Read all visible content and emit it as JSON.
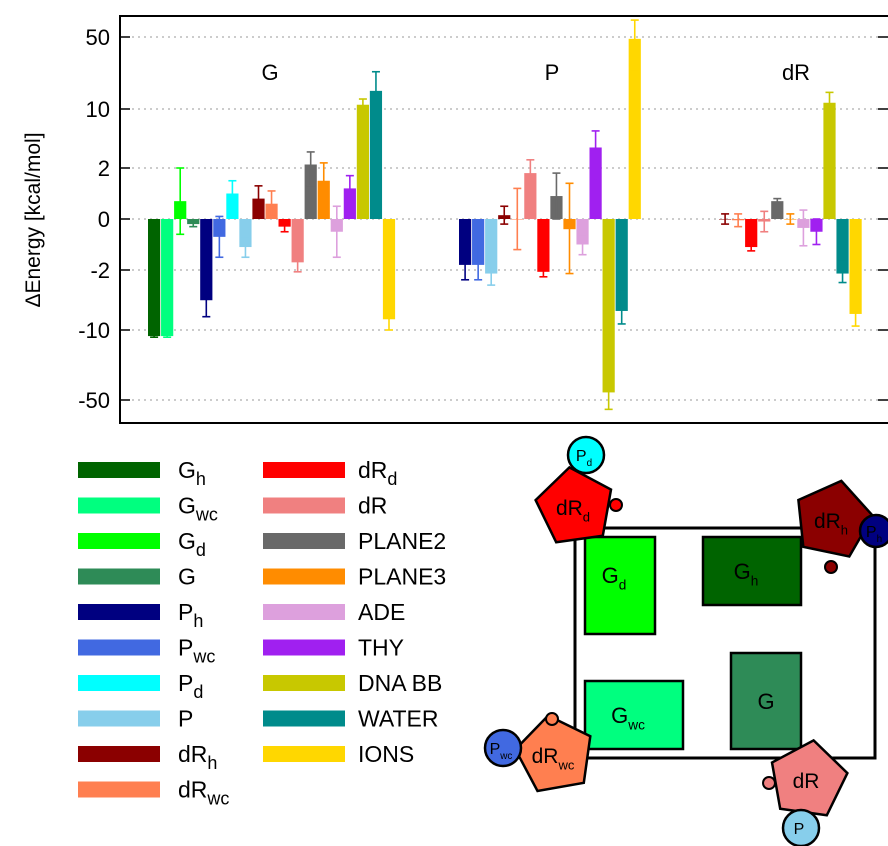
{
  "chart_data": {
    "type": "bar",
    "ylabel": "ΔEnergy [kcal/mol]",
    "yscale": "symlog",
    "yticks": [
      "50",
      "10",
      "2",
      "0",
      "-2",
      "-10",
      "-50"
    ],
    "ylim": [
      -80,
      80
    ],
    "grid": "horizontal dotted",
    "groups": [
      {
        "label": "G",
        "bars": [
          {
            "series": "Gh",
            "value": -11.5,
            "err": 0.3
          },
          {
            "series": "Gwc",
            "value": -11.5,
            "err": 0.3
          },
          {
            "series": "Gd",
            "value": 0.7,
            "err": 1.3
          },
          {
            "series": "G",
            "value": -0.2,
            "err": 0.1
          },
          {
            "series": "Ph",
            "value": -4.5,
            "err": 2.5
          },
          {
            "series": "Pwc",
            "value": -0.7,
            "err": 0.8
          },
          {
            "series": "Pd",
            "value": 1.0,
            "err": 0.5
          },
          {
            "series": "P",
            "value": -1.1,
            "err": 0.4
          },
          {
            "series": "dRh",
            "value": 0.8,
            "err": 0.5
          },
          {
            "series": "dRwc",
            "value": 0.6,
            "err": 0.5
          },
          {
            "series": "dRd",
            "value": -0.3,
            "err": 0.2
          },
          {
            "series": "dR",
            "value": -1.7,
            "err": 0.4
          },
          {
            "series": "PLANE2",
            "value": 2.2,
            "err": 0.9
          },
          {
            "series": "PLANE3",
            "value": 1.5,
            "err": 0.8
          },
          {
            "series": "ADE",
            "value": -0.5,
            "err": 1.0
          },
          {
            "series": "THY",
            "value": 1.2,
            "err": 0.5
          },
          {
            "series": "DNA BB",
            "value": 11.0,
            "err": 1.5
          },
          {
            "series": "WATER",
            "value": 15.0,
            "err": 8.0
          },
          {
            "series": "IONS",
            "value": -7.5,
            "err": 2.5
          }
        ]
      },
      {
        "label": "P",
        "bars": [
          {
            "series": "Ph",
            "value": -1.8,
            "err": 0.8
          },
          {
            "series": "Pwc",
            "value": -1.8,
            "err": 0.8
          },
          {
            "series": "P",
            "value": -2.2,
            "err": 0.8
          },
          {
            "series": "dRh",
            "value": 0.15,
            "err": 0.35
          },
          {
            "series": "dRwc",
            "value": 0.0,
            "err": 1.2
          },
          {
            "series": "dR",
            "value": 1.8,
            "err": 0.7
          },
          {
            "series": "dRd",
            "value": -2.1,
            "err": 0.3
          },
          {
            "series": "PLANE2",
            "value": 0.9,
            "err": 0.9
          },
          {
            "series": "PLANE3",
            "value": -0.4,
            "err": 1.8
          },
          {
            "series": "ADE",
            "value": -1.0,
            "err": 0.4
          },
          {
            "series": "THY",
            "value": 3.5,
            "err": 2.0
          },
          {
            "series": "DNA BB",
            "value": -42.0,
            "err": 20.0
          },
          {
            "series": "WATER",
            "value": -6.0,
            "err": 2.5
          },
          {
            "series": "IONS",
            "value": 48.0,
            "err": 25.0
          }
        ]
      },
      {
        "label": "dR",
        "bars": [
          {
            "series": "dRh",
            "value": 0.0,
            "err": 0.2
          },
          {
            "series": "dRwc",
            "value": -0.05,
            "err": 0.25
          },
          {
            "series": "dRd",
            "value": -1.1,
            "err": 0.15
          },
          {
            "series": "dR",
            "value": -0.1,
            "err": 0.4
          },
          {
            "series": "PLANE2",
            "value": 0.7,
            "err": 0.1
          },
          {
            "series": "PLANE3",
            "value": 0.0,
            "err": 0.2
          },
          {
            "series": "ADE",
            "value": -0.35,
            "err": 0.7
          },
          {
            "series": "THY",
            "value": -0.5,
            "err": 0.5
          },
          {
            "series": "DNA BB",
            "value": 11.5,
            "err": 3.0
          },
          {
            "series": "WATER",
            "value": -2.2,
            "err": 0.6
          },
          {
            "series": "IONS",
            "value": -6.5,
            "err": 2.5
          }
        ]
      }
    ],
    "legend": [
      {
        "id": "Gh",
        "base": "G",
        "sub": "h",
        "color": "#006400"
      },
      {
        "id": "Gwc",
        "base": "G",
        "sub": "wc",
        "color": "#00ff7f"
      },
      {
        "id": "Gd",
        "base": "G",
        "sub": "d",
        "color": "#00ff00"
      },
      {
        "id": "G",
        "base": "G",
        "sub": "",
        "color": "#2e8b57"
      },
      {
        "id": "Ph",
        "base": "P",
        "sub": "h",
        "color": "#000080"
      },
      {
        "id": "Pwc",
        "base": "P",
        "sub": "wc",
        "color": "#4169e1"
      },
      {
        "id": "Pd",
        "base": "P",
        "sub": "d",
        "color": "#00ffff"
      },
      {
        "id": "P",
        "base": "P",
        "sub": "",
        "color": "#87ceeb"
      },
      {
        "id": "dRh",
        "base": "dR",
        "sub": "h",
        "color": "#8b0000"
      },
      {
        "id": "dRwc",
        "base": "dR",
        "sub": "wc",
        "color": "#ff7f50"
      },
      {
        "id": "dRd",
        "base": "dR",
        "sub": "d",
        "color": "#ff0000"
      },
      {
        "id": "dR",
        "base": "dR",
        "sub": "",
        "color": "#f08080"
      },
      {
        "id": "PLANE2",
        "base": "PLANE2",
        "sub": "",
        "color": "#696969"
      },
      {
        "id": "PLANE3",
        "base": "PLANE3",
        "sub": "",
        "color": "#ff8c00"
      },
      {
        "id": "ADE",
        "base": "ADE",
        "sub": "",
        "color": "#dda0dd"
      },
      {
        "id": "THY",
        "base": "THY",
        "sub": "",
        "color": "#a020f0"
      },
      {
        "id": "DNA BB",
        "base": "DNA BB",
        "sub": "",
        "color": "#c8c800"
      },
      {
        "id": "WATER",
        "base": "WATER",
        "sub": "",
        "color": "#008b8b"
      },
      {
        "id": "IONS",
        "base": "IONS",
        "sub": "",
        "color": "#ffd700"
      }
    ]
  },
  "schematic": {
    "boxes": [
      {
        "id": "Gd",
        "base": "G",
        "sub": "d",
        "color": "#00ff00"
      },
      {
        "id": "Gh",
        "base": "G",
        "sub": "h",
        "color": "#006400"
      },
      {
        "id": "Gwc",
        "base": "G",
        "sub": "wc",
        "color": "#00ff7f"
      },
      {
        "id": "G",
        "base": "G",
        "sub": "",
        "color": "#2e8b57"
      }
    ],
    "pentagons": [
      {
        "id": "dRd",
        "base": "dR",
        "sub": "d",
        "color": "#ff0000"
      },
      {
        "id": "dRh",
        "base": "dR",
        "sub": "h",
        "color": "#8b0000"
      },
      {
        "id": "dRwc",
        "base": "dR",
        "sub": "wc",
        "color": "#ff7f50"
      },
      {
        "id": "dR",
        "base": "dR",
        "sub": "",
        "color": "#f08080"
      }
    ],
    "phosphates": [
      {
        "id": "Pd",
        "base": "P",
        "sub": "d",
        "color": "#00ffff"
      },
      {
        "id": "Ph",
        "base": "P",
        "sub": "h",
        "color": "#000080"
      },
      {
        "id": "Pwc",
        "base": "P",
        "sub": "wc",
        "color": "#4169e1"
      },
      {
        "id": "P",
        "base": "P",
        "sub": "",
        "color": "#87ceeb"
      }
    ]
  }
}
